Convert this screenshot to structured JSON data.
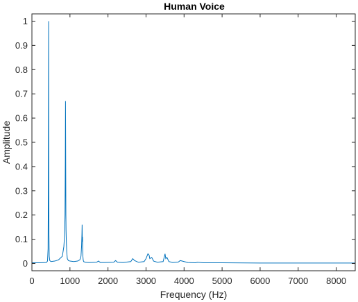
{
  "chart_data": {
    "type": "line",
    "title": "Human Voice",
    "xlabel": "Frequency (Hz)",
    "ylabel": "Amplitude",
    "xlim": [
      0,
      8500
    ],
    "ylim": [
      -0.03,
      1.03
    ],
    "xticks": [
      0,
      1000,
      2000,
      3000,
      4000,
      5000,
      6000,
      7000,
      8000
    ],
    "xtick_labels": [
      "0",
      "1000",
      "2000",
      "3000",
      "4000",
      "5000",
      "6000",
      "7000",
      "8000"
    ],
    "yticks": [
      0,
      0.1,
      0.2,
      0.3,
      0.4,
      0.5,
      0.6,
      0.7,
      0.8,
      0.9,
      1
    ],
    "ytick_labels": [
      "0",
      "0.1",
      "0.2",
      "0.3",
      "0.4",
      "0.5",
      "0.6",
      "0.7",
      "0.8",
      "0.9",
      "1"
    ],
    "grid": false,
    "series": [
      {
        "color": "#0072bd",
        "x": [
          0,
          200,
          380,
          410,
          425,
          432,
          437,
          440,
          443,
          448,
          455,
          470,
          500,
          600,
          700,
          800,
          840,
          860,
          870,
          878,
          883,
          887,
          890,
          893,
          897,
          905,
          915,
          930,
          960,
          1000,
          1100,
          1200,
          1260,
          1290,
          1305,
          1315,
          1320,
          1325,
          1330,
          1335,
          1340,
          1348,
          1360,
          1400,
          1500,
          1700,
          1750,
          1800,
          1900,
          2150,
          2200,
          2250,
          2400,
          2600,
          2650,
          2700,
          2800,
          2950,
          3000,
          3050,
          3080,
          3100,
          3150,
          3200,
          3300,
          3450,
          3500,
          3520,
          3550,
          3600,
          3700,
          3850,
          3900,
          3950,
          4000,
          4100,
          4300,
          4350,
          4500,
          5000,
          6000,
          7000,
          8000,
          8500
        ],
        "y": [
          0.003,
          0.003,
          0.004,
          0.01,
          0.06,
          0.3,
          0.75,
          1.0,
          0.55,
          0.12,
          0.03,
          0.012,
          0.008,
          0.01,
          0.015,
          0.03,
          0.07,
          0.12,
          0.2,
          0.42,
          0.67,
          0.5,
          0.35,
          0.2,
          0.14,
          0.09,
          0.05,
          0.02,
          0.012,
          0.01,
          0.008,
          0.01,
          0.015,
          0.03,
          0.07,
          0.12,
          0.16,
          0.09,
          0.11,
          0.06,
          0.03,
          0.015,
          0.008,
          0.005,
          0.004,
          0.005,
          0.01,
          0.004,
          0.004,
          0.005,
          0.012,
          0.005,
          0.004,
          0.008,
          0.02,
          0.012,
          0.005,
          0.008,
          0.02,
          0.04,
          0.035,
          0.02,
          0.025,
          0.01,
          0.005,
          0.008,
          0.04,
          0.02,
          0.025,
          0.008,
          0.004,
          0.006,
          0.012,
          0.01,
          0.008,
          0.004,
          0.003,
          0.005,
          0.003,
          0.003,
          0.002,
          0.002,
          0.002,
          0.002
        ]
      }
    ]
  }
}
